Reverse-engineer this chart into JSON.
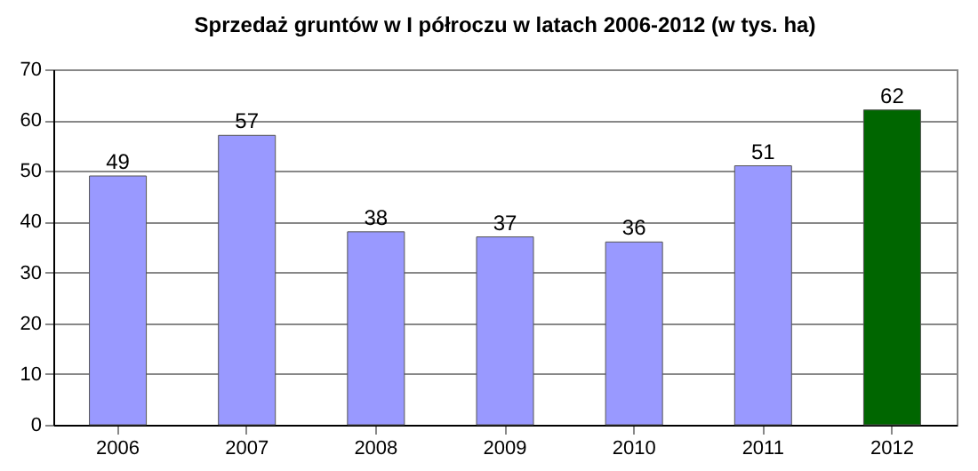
{
  "chart_data": {
    "type": "bar",
    "title": "Sprzedaż gruntów w I półroczu w latach 2006-2012 (w tys. ha)",
    "categories": [
      "2006",
      "2007",
      "2008",
      "2009",
      "2010",
      "2011",
      "2012"
    ],
    "values": [
      49,
      57,
      38,
      37,
      36,
      51,
      62
    ],
    "colors": [
      "#9999ff",
      "#9999ff",
      "#9999ff",
      "#9999ff",
      "#9999ff",
      "#9999ff",
      "#006600"
    ],
    "ylim": [
      0,
      70
    ],
    "yticks": [
      0,
      10,
      20,
      30,
      40,
      50,
      60,
      70
    ],
    "grid": "y",
    "data_labels": true
  }
}
